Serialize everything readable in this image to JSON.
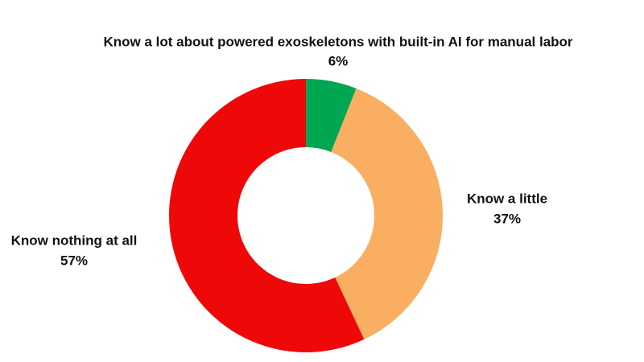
{
  "chart_data": {
    "type": "donut",
    "categories": [
      "Know a lot about powered exoskeletons with built-in AI for manual labor",
      "Know a little",
      "Know nothing at all"
    ],
    "values": [
      6,
      37,
      57
    ],
    "value_labels": [
      "6%",
      "37%",
      "57%"
    ],
    "colors": [
      "#00a651",
      "#f9ae62",
      "#ee0808"
    ]
  }
}
